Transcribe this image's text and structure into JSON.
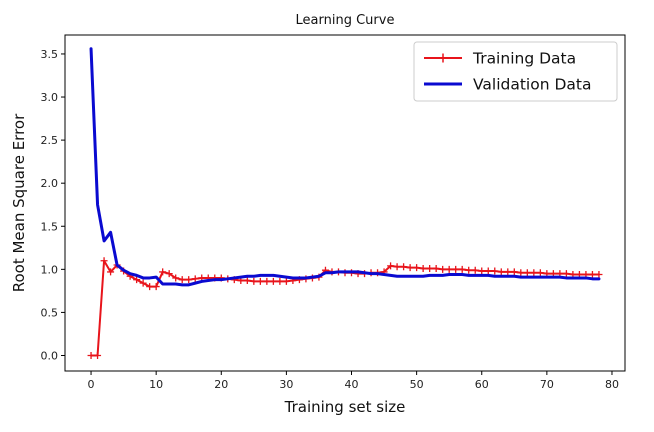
{
  "chart_data": {
    "type": "line",
    "title": "Learning Curve",
    "xlabel": "Training set size",
    "ylabel": "Root Mean Square Error",
    "xlim": [
      -4,
      82
    ],
    "ylim": [
      -0.18,
      3.72
    ],
    "xticks": [
      0,
      10,
      20,
      30,
      40,
      50,
      60,
      70,
      80
    ],
    "yticks": [
      0.0,
      0.5,
      1.0,
      1.5,
      2.0,
      2.5,
      3.0,
      3.5
    ],
    "grid": false,
    "legend_position": "top-right",
    "x": [
      0,
      1,
      2,
      3,
      4,
      5,
      6,
      7,
      8,
      9,
      10,
      11,
      12,
      13,
      14,
      15,
      16,
      17,
      18,
      19,
      20,
      21,
      22,
      23,
      24,
      25,
      26,
      27,
      28,
      29,
      30,
      31,
      32,
      33,
      34,
      35,
      36,
      37,
      38,
      39,
      40,
      41,
      42,
      43,
      44,
      45,
      46,
      47,
      48,
      49,
      50,
      51,
      52,
      53,
      54,
      55,
      56,
      57,
      58,
      59,
      60,
      61,
      62,
      63,
      64,
      65,
      66,
      67,
      68,
      69,
      70,
      71,
      72,
      73,
      74,
      75,
      76,
      77,
      78
    ],
    "series": [
      {
        "name": "Training Data",
        "color": "#e8141b",
        "marker": "plus",
        "line_width": 2,
        "values": [
          0.0,
          0.0,
          1.1,
          0.97,
          1.05,
          0.98,
          0.92,
          0.88,
          0.84,
          0.8,
          0.8,
          0.97,
          0.95,
          0.9,
          0.88,
          0.88,
          0.89,
          0.9,
          0.9,
          0.9,
          0.9,
          0.89,
          0.88,
          0.87,
          0.87,
          0.86,
          0.86,
          0.86,
          0.86,
          0.86,
          0.86,
          0.87,
          0.88,
          0.89,
          0.9,
          0.91,
          0.99,
          0.97,
          0.97,
          0.96,
          0.96,
          0.95,
          0.95,
          0.96,
          0.96,
          0.97,
          1.04,
          1.03,
          1.03,
          1.02,
          1.02,
          1.01,
          1.01,
          1.01,
          1.0,
          1.0,
          1.0,
          1.0,
          0.99,
          0.99,
          0.98,
          0.98,
          0.98,
          0.97,
          0.97,
          0.97,
          0.96,
          0.96,
          0.96,
          0.96,
          0.95,
          0.95,
          0.95,
          0.95,
          0.94,
          0.94,
          0.94,
          0.94,
          0.94
        ]
      },
      {
        "name": "Validation Data",
        "color": "#0a0ad0",
        "marker": "none",
        "line_width": 3,
        "values": [
          3.56,
          1.75,
          1.33,
          1.43,
          1.05,
          0.99,
          0.95,
          0.93,
          0.9,
          0.9,
          0.91,
          0.83,
          0.83,
          0.83,
          0.82,
          0.82,
          0.84,
          0.86,
          0.87,
          0.88,
          0.88,
          0.89,
          0.9,
          0.91,
          0.92,
          0.92,
          0.93,
          0.93,
          0.93,
          0.92,
          0.91,
          0.9,
          0.9,
          0.9,
          0.91,
          0.92,
          0.96,
          0.96,
          0.97,
          0.97,
          0.97,
          0.97,
          0.96,
          0.95,
          0.95,
          0.94,
          0.93,
          0.92,
          0.92,
          0.92,
          0.92,
          0.92,
          0.93,
          0.93,
          0.93,
          0.94,
          0.94,
          0.94,
          0.93,
          0.93,
          0.93,
          0.93,
          0.92,
          0.92,
          0.92,
          0.92,
          0.91,
          0.91,
          0.91,
          0.91,
          0.91,
          0.91,
          0.91,
          0.9,
          0.9,
          0.9,
          0.9,
          0.89,
          0.89
        ]
      }
    ]
  }
}
